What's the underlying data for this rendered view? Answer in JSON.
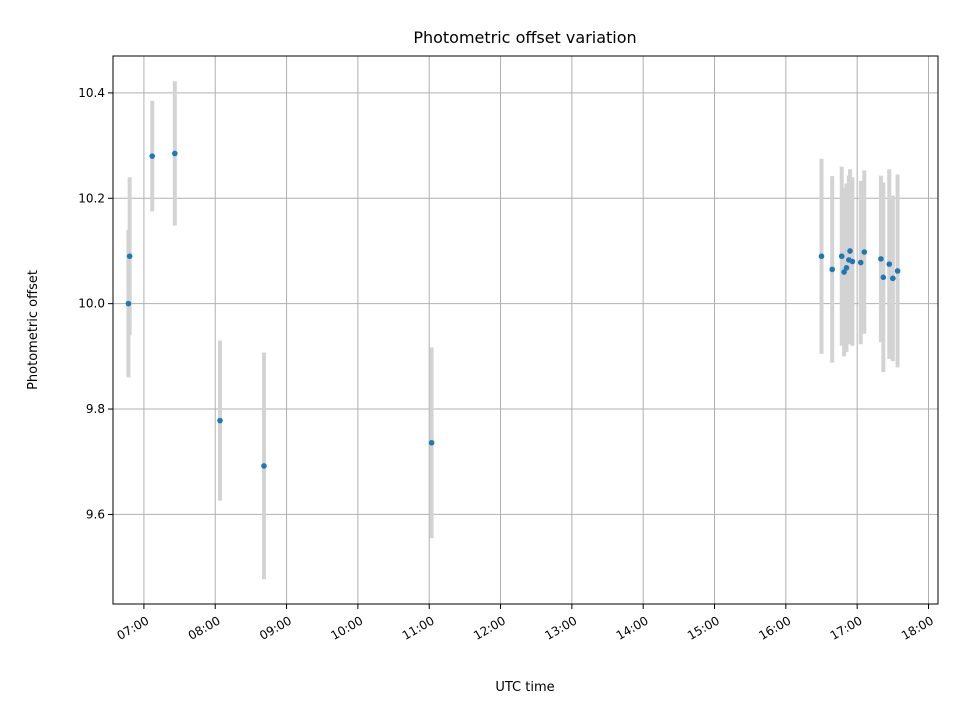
{
  "chart_data": {
    "type": "scatter",
    "title": "Photometric offset variation",
    "xlabel": "UTC time",
    "ylabel": "Photometric offset",
    "xlim": [
      "06:34",
      "18:08"
    ],
    "ylim": [
      9.43,
      10.47
    ],
    "x_ticks": [
      "07:00",
      "08:00",
      "09:00",
      "10:00",
      "11:00",
      "12:00",
      "13:00",
      "14:00",
      "15:00",
      "16:00",
      "17:00",
      "18:00"
    ],
    "y_ticks": [
      9.6,
      9.8,
      10.0,
      10.2,
      10.4
    ],
    "y_tick_labels": [
      "9.6",
      "9.8",
      "10.0",
      "10.2",
      "10.4"
    ],
    "grid": true,
    "marker_color": "#1f77b4",
    "errorbar_color": "#d3d3d3",
    "points": [
      {
        "t": "06:47",
        "y": 10.0,
        "err": 0.14
      },
      {
        "t": "06:48",
        "y": 10.09,
        "err": 0.15
      },
      {
        "t": "07:07",
        "y": 10.28,
        "err": 0.105
      },
      {
        "t": "07:26",
        "y": 10.285,
        "err": 0.137
      },
      {
        "t": "08:04",
        "y": 9.778,
        "err": 0.152
      },
      {
        "t": "08:41",
        "y": 9.692,
        "err": 0.215
      },
      {
        "t": "11:02",
        "y": 9.736,
        "err": 0.181
      },
      {
        "t": "16:30",
        "y": 10.09,
        "err": 0.185
      },
      {
        "t": "16:39",
        "y": 10.065,
        "err": 0.177
      },
      {
        "t": "16:47",
        "y": 10.09,
        "err": 0.17
      },
      {
        "t": "16:49",
        "y": 10.06,
        "err": 0.16
      },
      {
        "t": "16:51",
        "y": 10.068,
        "err": 0.16
      },
      {
        "t": "16:53",
        "y": 10.083,
        "err": 0.16
      },
      {
        "t": "16:54",
        "y": 10.1,
        "err": 0.155
      },
      {
        "t": "16:56",
        "y": 10.08,
        "err": 0.16
      },
      {
        "t": "17:03",
        "y": 10.078,
        "err": 0.155
      },
      {
        "t": "17:06",
        "y": 10.098,
        "err": 0.155
      },
      {
        "t": "17:20",
        "y": 10.085,
        "err": 0.158
      },
      {
        "t": "17:22",
        "y": 10.05,
        "err": 0.18
      },
      {
        "t": "17:27",
        "y": 10.075,
        "err": 0.18
      },
      {
        "t": "17:30",
        "y": 10.048,
        "err": 0.157
      },
      {
        "t": "17:34",
        "y": 10.062,
        "err": 0.183
      }
    ]
  }
}
